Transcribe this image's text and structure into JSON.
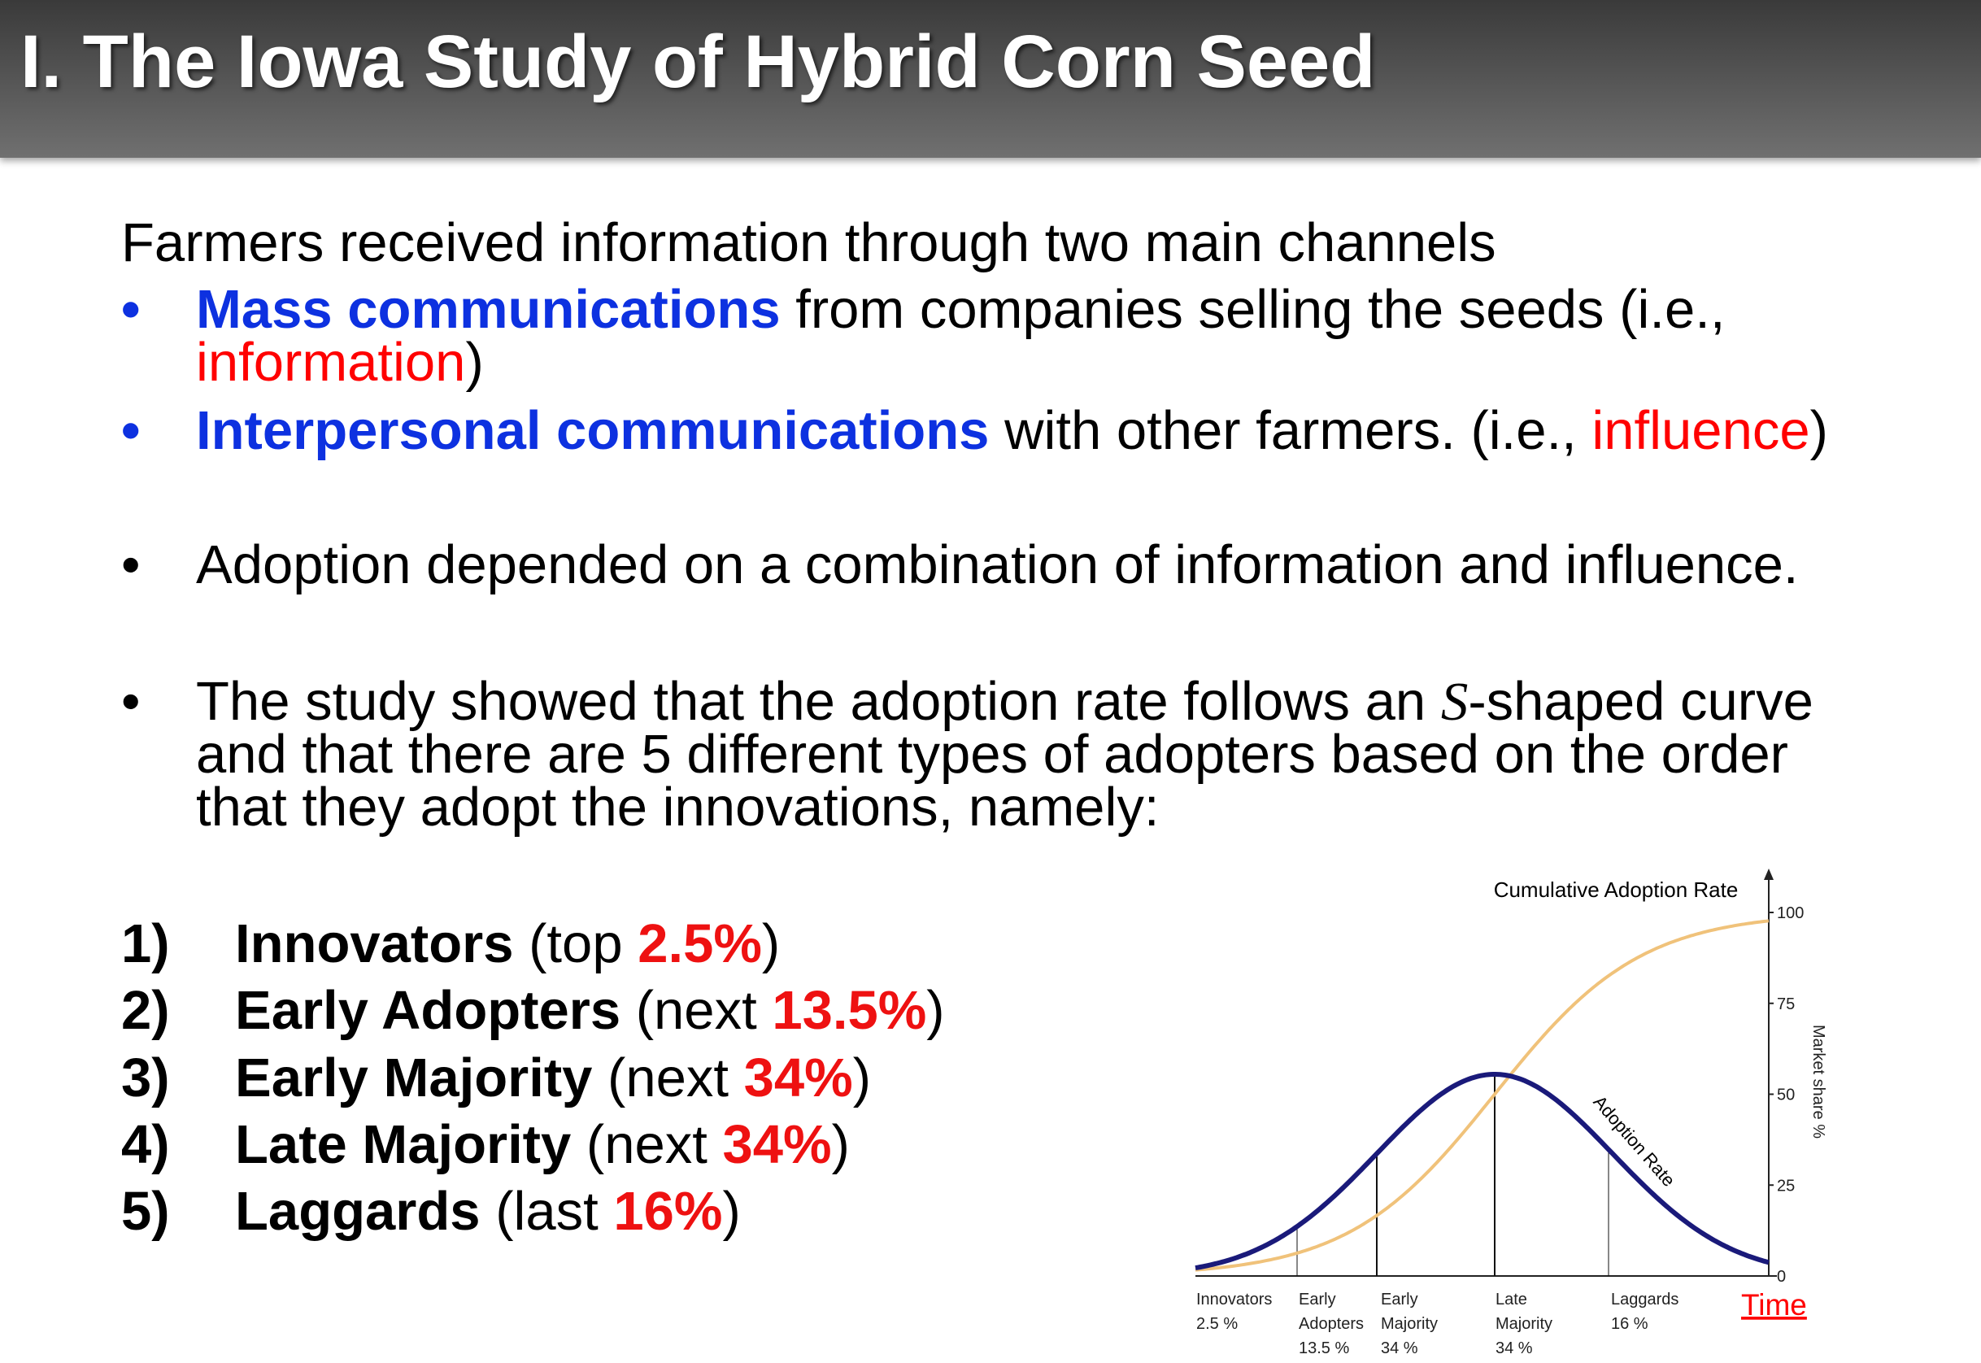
{
  "header": {
    "title": "I. The Iowa Study of Hybrid Corn Seed"
  },
  "intro": "Farmers received information through two main channels",
  "bullet": "•",
  "bullets": [
    {
      "bold": "Mass communications",
      "text": "from companies selling the seeds (i.e.,",
      "highlight": "information",
      "close": ")"
    },
    {
      "bold": "Interpersonal communications",
      "text": "with other farmers. (i.e.,",
      "highlight": "influence",
      "close": ")"
    }
  ],
  "point1": "Adoption depended on a combination of information and influence.",
  "point2": {
    "before": "The study showed that the adoption rate follows an",
    "symbol": "S",
    "after": "-shaped curve",
    "line2": "and that there are 5 different types of adopters based on the order",
    "line3": "that they adopt the innovations, namely:"
  },
  "adopters": [
    {
      "num": "1)",
      "name": "Innovators",
      "pre": "(top",
      "pct": "2.5%",
      "post": ")"
    },
    {
      "num": "2)",
      "name": "Early Adopters",
      "pre": "(next",
      "pct": "13.5%",
      "post": ")"
    },
    {
      "num": "3)",
      "name": "Early Majority",
      "pre": "(next",
      "pct": "34%",
      "post": ")"
    },
    {
      "num": "4)",
      "name": "Late Majority",
      "pre": "(next",
      "pct": "34%",
      "post": ")"
    },
    {
      "num": "5)",
      "name": "Laggards",
      "pre": "(last",
      "pct": "16%",
      "post": ")"
    }
  ],
  "figure": {
    "title": "Cumulative Adoption Rate",
    "axis_label": "Market share %",
    "curve_label": "Adoption Rate",
    "time_label": "Time",
    "yticks": [
      0,
      25,
      50,
      75,
      100
    ],
    "stages": [
      [
        "Innovators",
        "2.5 %"
      ],
      [
        "Early",
        "Adopters",
        "13.5 %"
      ],
      [
        "Early",
        "Majority",
        "34 %"
      ],
      [
        "Late",
        "Majority",
        "34 %"
      ],
      [
        "Laggards",
        "16 %"
      ]
    ]
  }
}
